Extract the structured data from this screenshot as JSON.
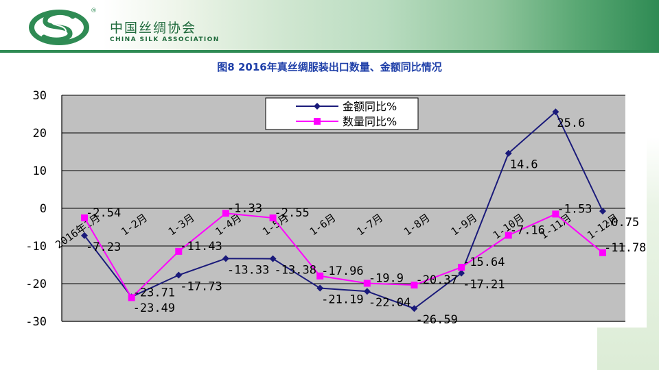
{
  "header": {
    "org_name_cn": "中国丝绸协会",
    "org_name_en": "CHINA SILK ASSOCIATION",
    "logo_mark": "®",
    "logo_icon": "silk-s-logo-icon"
  },
  "colors": {
    "header_green": "#2f8b54",
    "title_blue": "#1e3fa8",
    "plot_bg": "#c0c0c0",
    "amount_series": "#1a1a7a",
    "quantity_series": "#ff00ff"
  },
  "chart_data": {
    "type": "line",
    "title": "图8   2016年真丝绸服装出口数量、金额同比情况",
    "xlabel": "",
    "ylabel": "",
    "ylim": [
      -30,
      30
    ],
    "yticks": [
      "30",
      "20",
      "10",
      "0",
      "-10",
      "-20",
      "-30"
    ],
    "categories": [
      "2016年1月",
      "1-2月",
      "1-3月",
      "1-4月",
      "1-5月",
      "1-6月",
      "1-7月",
      "1-8月",
      "1-9月",
      "1-10月",
      "1-11月",
      "1-12月"
    ],
    "legend_position": "top",
    "grid": true,
    "series": [
      {
        "name": "金额同比%",
        "values": [
          -7.23,
          -23.49,
          -17.73,
          -13.33,
          -13.38,
          -21.19,
          -22.04,
          -26.59,
          -17.21,
          14.6,
          25.6,
          -0.75
        ],
        "labels": [
          "-7.23",
          "-23.49",
          "-17.73",
          "-13.33",
          "-13.38",
          "-21.19",
          "-22.04",
          "-26.59",
          "-17.21",
          "14.6",
          "25.6",
          "-0.75"
        ]
      },
      {
        "name": "数量同比%",
        "values": [
          -2.54,
          -23.71,
          -11.43,
          -1.33,
          -2.55,
          -17.96,
          -19.9,
          -20.37,
          -15.64,
          -7.16,
          -1.53,
          -11.78
        ],
        "labels": [
          "-2.54",
          "-23.71",
          "-11.43",
          "-1.33",
          "-2.55",
          "-17.96",
          "-19.9",
          "-20.37",
          "-15.64",
          "-7.16",
          "-1.53",
          "-11.78"
        ]
      }
    ]
  }
}
